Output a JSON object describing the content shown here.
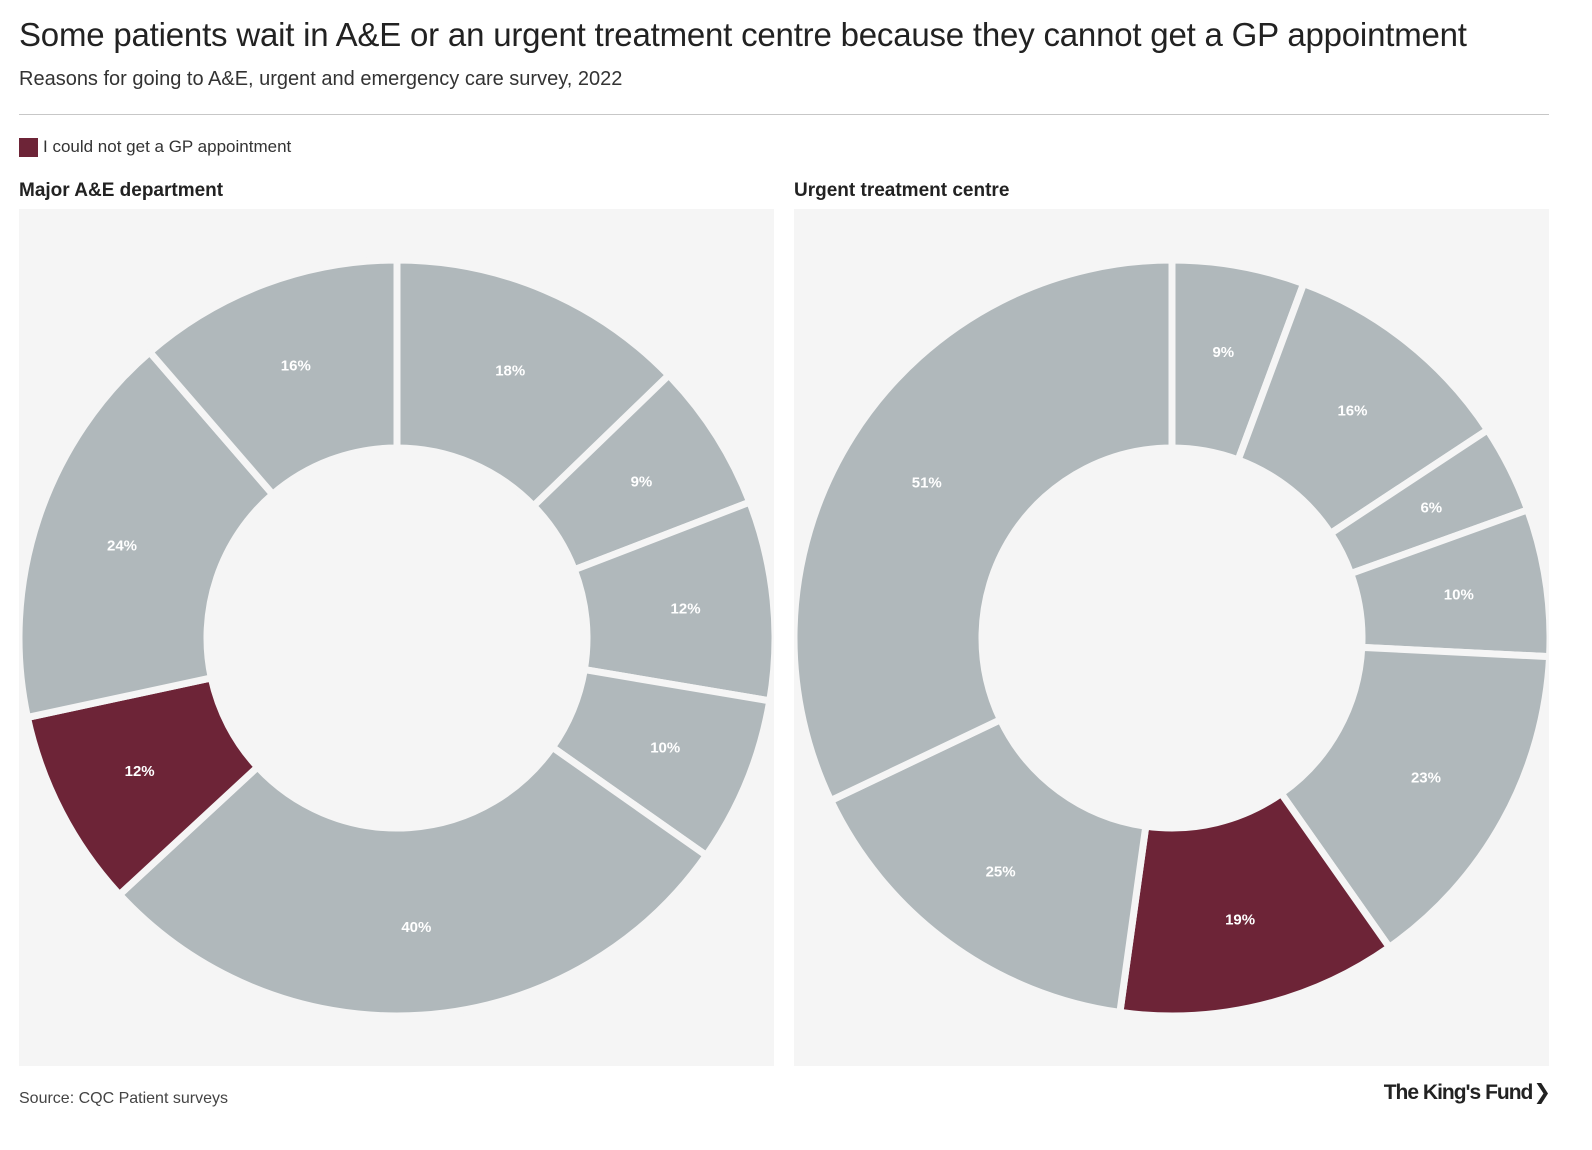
{
  "header": {
    "title": "Some patients wait in A&E or an urgent treatment centre because they cannot get a GP appointment",
    "subtitle": "Reasons for going to A&E, urgent and emergency care survey, 2022"
  },
  "legend": {
    "label": "I could not get a GP appointment",
    "color": "#6d2437"
  },
  "colors": {
    "highlight": "#6d2437",
    "other": "#b0b8bb",
    "panel_background": "#f5f5f5"
  },
  "chart_data": [
    {
      "type": "pie",
      "variant": "donut",
      "title": "Major A&E department",
      "slices": [
        {
          "value": 18,
          "label": "18%",
          "highlight": false
        },
        {
          "value": 9,
          "label": "9%",
          "highlight": false
        },
        {
          "value": 12,
          "label": "12%",
          "highlight": false
        },
        {
          "value": 10,
          "label": "10%",
          "highlight": false
        },
        {
          "value": 40,
          "label": "40%",
          "highlight": false
        },
        {
          "value": 12,
          "label": "12%",
          "highlight": true
        },
        {
          "value": 24,
          "label": "24%",
          "highlight": false
        },
        {
          "value": 16,
          "label": "16%",
          "highlight": false
        }
      ]
    },
    {
      "type": "pie",
      "variant": "donut",
      "title": "Urgent treatment centre",
      "slices": [
        {
          "value": 9,
          "label": "9%",
          "highlight": false
        },
        {
          "value": 16,
          "label": "16%",
          "highlight": false
        },
        {
          "value": 6,
          "label": "6%",
          "highlight": false
        },
        {
          "value": 10,
          "label": "10%",
          "highlight": false
        },
        {
          "value": 23,
          "label": "23%",
          "highlight": false
        },
        {
          "value": 19,
          "label": "19%",
          "highlight": true
        },
        {
          "value": 25,
          "label": "25%",
          "highlight": false
        },
        {
          "value": 51,
          "label": "51%",
          "highlight": false
        }
      ]
    }
  ],
  "footer": {
    "source": "Source: CQC Patient surveys",
    "logo_text": "The King's Fund",
    "logo_mark": "❯"
  }
}
